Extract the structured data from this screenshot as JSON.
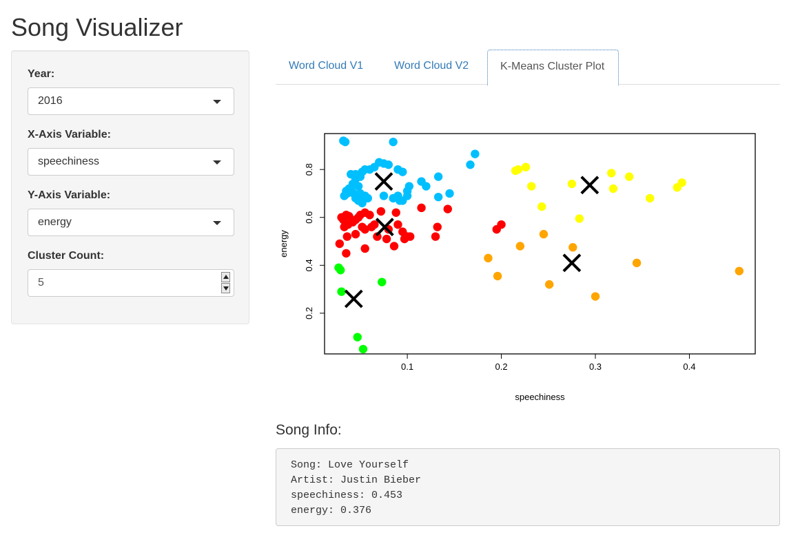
{
  "app": {
    "title": "Song Visualizer"
  },
  "sidebar": {
    "year": {
      "label": "Year:",
      "value": "2016"
    },
    "x_axis": {
      "label": "X-Axis Variable:",
      "value": "speechiness"
    },
    "y_axis": {
      "label": "Y-Axis Variable:",
      "value": "energy"
    },
    "cluster_count": {
      "label": "Cluster Count:",
      "value": "5"
    }
  },
  "tabs": [
    {
      "label": "Word Cloud V1",
      "active": false
    },
    {
      "label": "Word Cloud V2",
      "active": false
    },
    {
      "label": "K-Means Cluster Plot",
      "active": true
    }
  ],
  "song_info": {
    "heading": "Song Info:",
    "lines": [
      "Song: Love Yourself",
      "Artist: Justin Bieber",
      "speechiness: 0.453",
      "energy: 0.376"
    ]
  },
  "chart_data": {
    "type": "scatter",
    "title": "",
    "xlabel": "speechiness",
    "ylabel": "energy",
    "xlim": [
      0.012,
      0.47
    ],
    "ylim": [
      0.03,
      0.95
    ],
    "xticks": [
      "0.1",
      "0.2",
      "0.3",
      "0.4"
    ],
    "yticks": [
      "0.2",
      "0.4",
      "0.6",
      "0.8"
    ],
    "grid": false,
    "colors": {
      "cyan": "#00bfff",
      "red": "#ff0000",
      "green": "#00ff00",
      "orange": "#ffa500",
      "yellow": "#ffff00",
      "center": "#000000"
    },
    "series": [
      {
        "color_key": "cyan",
        "points": [
          [
            0.032,
            0.92
          ],
          [
            0.034,
            0.915
          ],
          [
            0.085,
            0.915
          ],
          [
            0.172,
            0.865
          ],
          [
            0.167,
            0.82
          ],
          [
            0.07,
            0.83
          ],
          [
            0.075,
            0.825
          ],
          [
            0.065,
            0.81
          ],
          [
            0.06,
            0.8
          ],
          [
            0.055,
            0.8
          ],
          [
            0.08,
            0.82
          ],
          [
            0.09,
            0.8
          ],
          [
            0.095,
            0.79
          ],
          [
            0.04,
            0.78
          ],
          [
            0.045,
            0.78
          ],
          [
            0.05,
            0.77
          ],
          [
            0.052,
            0.79
          ],
          [
            0.133,
            0.77
          ],
          [
            0.115,
            0.75
          ],
          [
            0.12,
            0.73
          ],
          [
            0.035,
            0.71
          ],
          [
            0.04,
            0.72
          ],
          [
            0.042,
            0.74
          ],
          [
            0.045,
            0.76
          ],
          [
            0.048,
            0.73
          ],
          [
            0.05,
            0.7
          ],
          [
            0.055,
            0.69
          ],
          [
            0.058,
            0.68
          ],
          [
            0.045,
            0.68
          ],
          [
            0.048,
            0.67
          ],
          [
            0.052,
            0.66
          ],
          [
            0.033,
            0.69
          ],
          [
            0.036,
            0.7
          ],
          [
            0.038,
            0.72
          ],
          [
            0.075,
            0.69
          ],
          [
            0.09,
            0.69
          ],
          [
            0.1,
            0.71
          ],
          [
            0.102,
            0.73
          ],
          [
            0.085,
            0.68
          ],
          [
            0.092,
            0.67
          ],
          [
            0.095,
            0.67
          ],
          [
            0.145,
            0.7
          ],
          [
            0.133,
            0.685
          ],
          [
            0.1,
            0.69
          ],
          [
            0.043,
            0.7
          ]
        ]
      },
      {
        "color_key": "red",
        "points": [
          [
            0.03,
            0.6
          ],
          [
            0.032,
            0.59
          ],
          [
            0.035,
            0.61
          ],
          [
            0.038,
            0.605
          ],
          [
            0.042,
            0.58
          ],
          [
            0.045,
            0.59
          ],
          [
            0.048,
            0.6
          ],
          [
            0.05,
            0.61
          ],
          [
            0.055,
            0.62
          ],
          [
            0.06,
            0.61
          ],
          [
            0.072,
            0.625
          ],
          [
            0.088,
            0.62
          ],
          [
            0.115,
            0.64
          ],
          [
            0.143,
            0.635
          ],
          [
            0.033,
            0.56
          ],
          [
            0.037,
            0.57
          ],
          [
            0.052,
            0.56
          ],
          [
            0.055,
            0.55
          ],
          [
            0.065,
            0.57
          ],
          [
            0.09,
            0.57
          ],
          [
            0.095,
            0.54
          ],
          [
            0.1,
            0.52
          ],
          [
            0.103,
            0.52
          ],
          [
            0.097,
            0.51
          ],
          [
            0.086,
            0.48
          ],
          [
            0.078,
            0.51
          ],
          [
            0.068,
            0.52
          ],
          [
            0.055,
            0.47
          ],
          [
            0.045,
            0.53
          ],
          [
            0.036,
            0.52
          ],
          [
            0.028,
            0.49
          ],
          [
            0.035,
            0.45
          ],
          [
            0.132,
            0.56
          ],
          [
            0.13,
            0.52
          ],
          [
            0.195,
            0.55
          ],
          [
            0.2,
            0.57
          ],
          [
            0.08,
            0.55
          ],
          [
            0.062,
            0.56
          ]
        ]
      },
      {
        "color_key": "green",
        "points": [
          [
            0.027,
            0.39
          ],
          [
            0.029,
            0.38
          ],
          [
            0.03,
            0.29
          ],
          [
            0.073,
            0.33
          ],
          [
            0.047,
            0.1
          ],
          [
            0.053,
            0.05
          ]
        ]
      },
      {
        "color_key": "orange",
        "points": [
          [
            0.186,
            0.43
          ],
          [
            0.196,
            0.355
          ],
          [
            0.22,
            0.48
          ],
          [
            0.245,
            0.53
          ],
          [
            0.251,
            0.32
          ],
          [
            0.276,
            0.475
          ],
          [
            0.3,
            0.27
          ],
          [
            0.344,
            0.41
          ],
          [
            0.453,
            0.376
          ]
        ]
      },
      {
        "color_key": "yellow",
        "points": [
          [
            0.215,
            0.795
          ],
          [
            0.218,
            0.8
          ],
          [
            0.226,
            0.81
          ],
          [
            0.232,
            0.73
          ],
          [
            0.243,
            0.645
          ],
          [
            0.275,
            0.74
          ],
          [
            0.283,
            0.595
          ],
          [
            0.317,
            0.785
          ],
          [
            0.319,
            0.72
          ],
          [
            0.336,
            0.77
          ],
          [
            0.358,
            0.68
          ],
          [
            0.387,
            0.725
          ],
          [
            0.392,
            0.745
          ]
        ]
      }
    ],
    "centers": [
      [
        0.075,
        0.75
      ],
      [
        0.294,
        0.735
      ],
      [
        0.076,
        0.56
      ],
      [
        0.275,
        0.41
      ],
      [
        0.043,
        0.26
      ]
    ]
  }
}
